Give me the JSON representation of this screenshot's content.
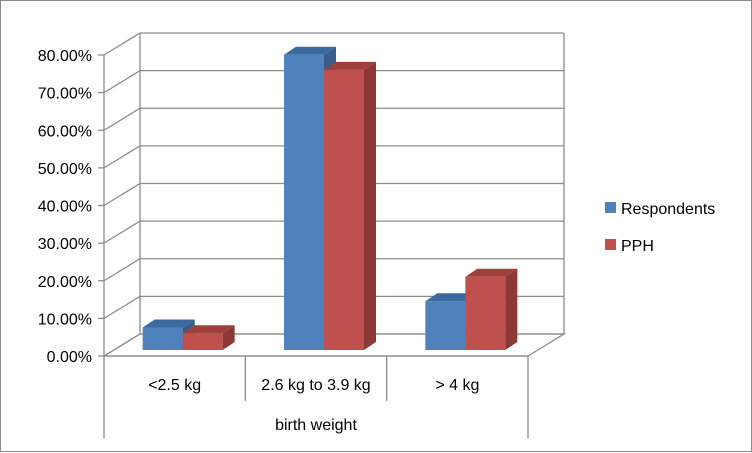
{
  "chart_data": {
    "type": "bar",
    "style": "3d-clustered-column",
    "categories": [
      "<2.5 kg",
      "2.6 kg to 3.9 kg",
      "> 4 kg"
    ],
    "series": [
      {
        "name": "Respondents",
        "values": [
          6.5,
          79.0,
          13.5
        ],
        "color": "#4f81bd",
        "top": "#3b6aa0",
        "side": "#385d8a"
      },
      {
        "name": "PPH",
        "values": [
          5.0,
          75.0,
          20.0
        ],
        "color": "#c0504d",
        "top": "#a0403d",
        "side": "#8c3836"
      }
    ],
    "title": "",
    "xlabel": "birth weight",
    "ylabel": "",
    "ylim": [
      0,
      80
    ],
    "yticks": [
      "0.00%",
      "10.00%",
      "20.00%",
      "30.00%",
      "40.00%",
      "50.00%",
      "60.00%",
      "70.00%",
      "80.00%"
    ],
    "grid": true,
    "legend": "right"
  }
}
